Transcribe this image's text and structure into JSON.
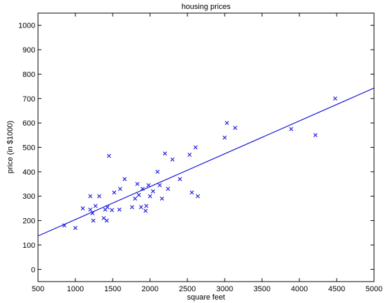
{
  "chart_data": {
    "type": "scatter",
    "title": "housing prices",
    "xlabel": "square feet",
    "ylabel": "price (in $1000)",
    "xlim": [
      500,
      5000
    ],
    "ylim": [
      -50,
      1050
    ],
    "xticks": [
      500,
      1000,
      1500,
      2000,
      2500,
      3000,
      3500,
      4000,
      4500,
      5000
    ],
    "yticks": [
      0,
      100,
      200,
      300,
      400,
      500,
      600,
      700,
      800,
      900,
      1000
    ],
    "grid": false,
    "legend": "none",
    "marker_color": "#1414d8",
    "line_color": "#1414d8",
    "points": [
      [
        852,
        180
      ],
      [
        1000,
        170
      ],
      [
        1100,
        250
      ],
      [
        1200,
        300
      ],
      [
        1200,
        245
      ],
      [
        1230,
        230
      ],
      [
        1240,
        200
      ],
      [
        1270,
        260
      ],
      [
        1320,
        300
      ],
      [
        1380,
        210
      ],
      [
        1400,
        245
      ],
      [
        1420,
        200
      ],
      [
        1430,
        255
      ],
      [
        1450,
        465
      ],
      [
        1490,
        243
      ],
      [
        1520,
        315
      ],
      [
        1590,
        245
      ],
      [
        1600,
        330
      ],
      [
        1660,
        370
      ],
      [
        1760,
        255
      ],
      [
        1800,
        290
      ],
      [
        1830,
        350
      ],
      [
        1850,
        305
      ],
      [
        1880,
        255
      ],
      [
        1900,
        330
      ],
      [
        1940,
        240
      ],
      [
        1950,
        260
      ],
      [
        1980,
        345
      ],
      [
        2000,
        300
      ],
      [
        2040,
        320
      ],
      [
        2100,
        400
      ],
      [
        2130,
        345
      ],
      [
        2160,
        290
      ],
      [
        2200,
        475
      ],
      [
        2240,
        330
      ],
      [
        2300,
        450
      ],
      [
        2400,
        370
      ],
      [
        2530,
        470
      ],
      [
        2560,
        315
      ],
      [
        2610,
        500
      ],
      [
        2640,
        300
      ],
      [
        3000,
        540
      ],
      [
        3030,
        600
      ],
      [
        3140,
        580
      ],
      [
        3890,
        575
      ],
      [
        4215,
        550
      ],
      [
        4480,
        700
      ]
    ],
    "fit_line": {
      "x": [
        500,
        5000
      ],
      "y": [
        137,
        743
      ]
    }
  }
}
